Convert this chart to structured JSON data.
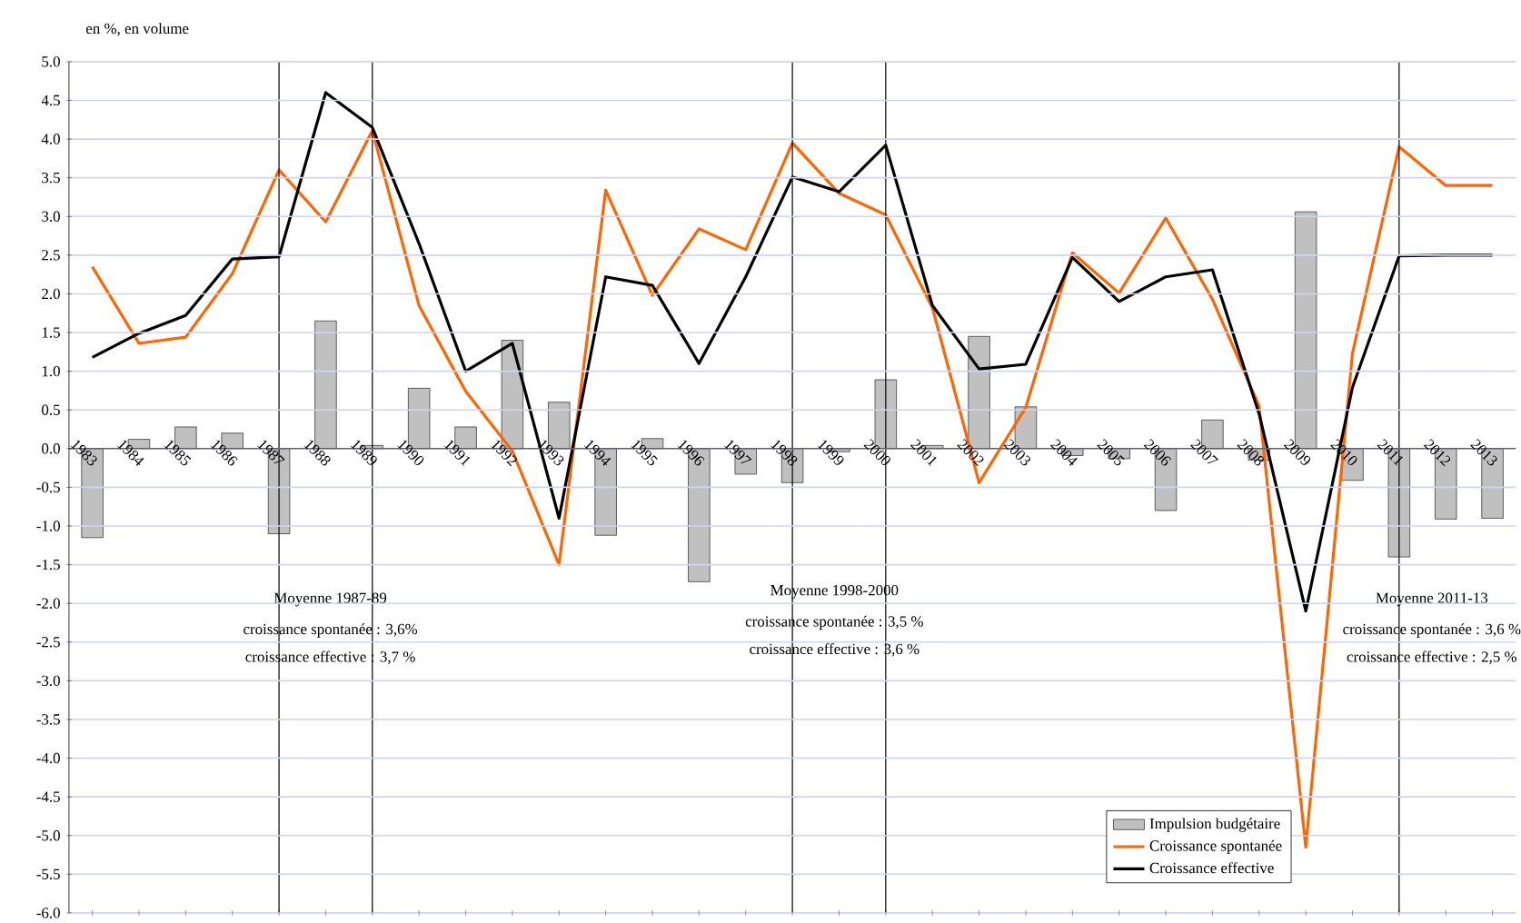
{
  "chart_data": {
    "type": "bar",
    "ylabel": "en %, en volume",
    "categories": [
      "1983",
      "1984",
      "1985",
      "1986",
      "1987",
      "1988",
      "1989",
      "1990",
      "1991",
      "1992",
      "1993",
      "1994",
      "1995",
      "1996",
      "1997",
      "1998",
      "1999",
      "2000",
      "2001",
      "2002",
      "2003",
      "2004",
      "2005",
      "2006",
      "2007",
      "2008",
      "2009",
      "2010",
      "2011",
      "2012",
      "2013"
    ],
    "series": [
      {
        "name": "Impulsion budgétaire",
        "type": "bar",
        "color": "#c0c0c0",
        "values": [
          -1.15,
          0.12,
          0.28,
          0.2,
          -1.1,
          1.65,
          0.04,
          0.78,
          0.28,
          1.4,
          0.6,
          -1.12,
          0.13,
          -1.72,
          -0.33,
          -0.44,
          -0.04,
          0.89,
          0.04,
          1.45,
          0.54,
          -0.09,
          -0.13,
          -0.8,
          0.37,
          -0.15,
          3.06,
          -0.41,
          -1.4,
          -0.91,
          -0.9
        ]
      },
      {
        "name": "Croissance spontanée",
        "type": "line",
        "color": "#ff6600",
        "values": [
          2.35,
          1.36,
          1.44,
          2.26,
          3.6,
          2.93,
          4.11,
          1.85,
          0.74,
          -0.03,
          -1.5,
          3.34,
          1.98,
          2.84,
          2.57,
          3.95,
          3.3,
          3.02,
          1.82,
          -0.44,
          0.53,
          2.53,
          2.01,
          2.98,
          1.93,
          0.55,
          -5.15,
          1.23,
          3.9,
          3.4,
          3.4
        ]
      },
      {
        "name": "Croissance effective",
        "type": "line",
        "color": "#000000",
        "values": [
          1.18,
          1.49,
          1.72,
          2.45,
          2.48,
          4.6,
          4.15,
          2.65,
          1.0,
          1.36,
          -0.9,
          2.22,
          2.11,
          1.1,
          2.22,
          3.51,
          3.32,
          3.92,
          1.85,
          1.03,
          1.09,
          2.47,
          1.9,
          2.22,
          2.31,
          0.45,
          -2.1,
          0.79,
          2.49,
          2.5,
          2.5
        ]
      }
    ],
    "ylim": [
      -6,
      5
    ],
    "yticks": [
      {
        "value": -6,
        "label": "-6.0"
      },
      {
        "value": -5.5,
        "label": "-5.5"
      },
      {
        "value": -5,
        "label": "-5.0"
      },
      {
        "value": -4.5,
        "label": "-4.5"
      },
      {
        "value": -4,
        "label": "-4.0"
      },
      {
        "value": -3.5,
        "label": "-3.5"
      },
      {
        "value": -3,
        "label": "-3.0"
      },
      {
        "value": -2.5,
        "label": "-2.5"
      },
      {
        "value": -2,
        "label": "-2.0"
      },
      {
        "value": -1.5,
        "label": "-1.5"
      },
      {
        "value": -1,
        "label": "-1.0"
      },
      {
        "value": -0.5,
        "label": "-0.5"
      },
      {
        "value": 0,
        "label": "0.0"
      },
      {
        "value": 0.5,
        "label": "0.5"
      },
      {
        "value": 1,
        "label": "1.0"
      },
      {
        "value": 1.5,
        "label": "1.5"
      },
      {
        "value": 2,
        "label": "2.0"
      },
      {
        "value": 2.5,
        "label": "2.5"
      },
      {
        "value": 3,
        "label": "3.0"
      },
      {
        "value": 3.5,
        "label": "3.5"
      },
      {
        "value": 4,
        "label": "4.0"
      },
      {
        "value": 4.5,
        "label": "4.5"
      },
      {
        "value": 5,
        "label": "5.0"
      }
    ],
    "ref_lines": [
      {
        "axis": "x",
        "value": "1987",
        "color": "#000000"
      },
      {
        "axis": "x",
        "value": "1989",
        "color": "#000000"
      },
      {
        "axis": "x",
        "value": "1998",
        "color": "#000000"
      },
      {
        "axis": "x",
        "value": "2000",
        "color": "#000000"
      },
      {
        "axis": "x",
        "value": "2011",
        "color": "#000000"
      }
    ],
    "annotations": [
      "Moyenne 1987-89",
      "croissance spontanée : 3,6%",
      "croissance effective : 3,7 %",
      "Moyenne 1998-2000",
      "croissance spontanée : 3,5 %",
      "croissance effective : 3,6 %",
      "Moyenne 2011-13",
      "croissance spontanée : 3,6 %",
      "croissance effective : 2,5 %"
    ],
    "grid": "y",
    "legend": "bottom right",
    "marker": "none",
    "line_style": "solid"
  }
}
